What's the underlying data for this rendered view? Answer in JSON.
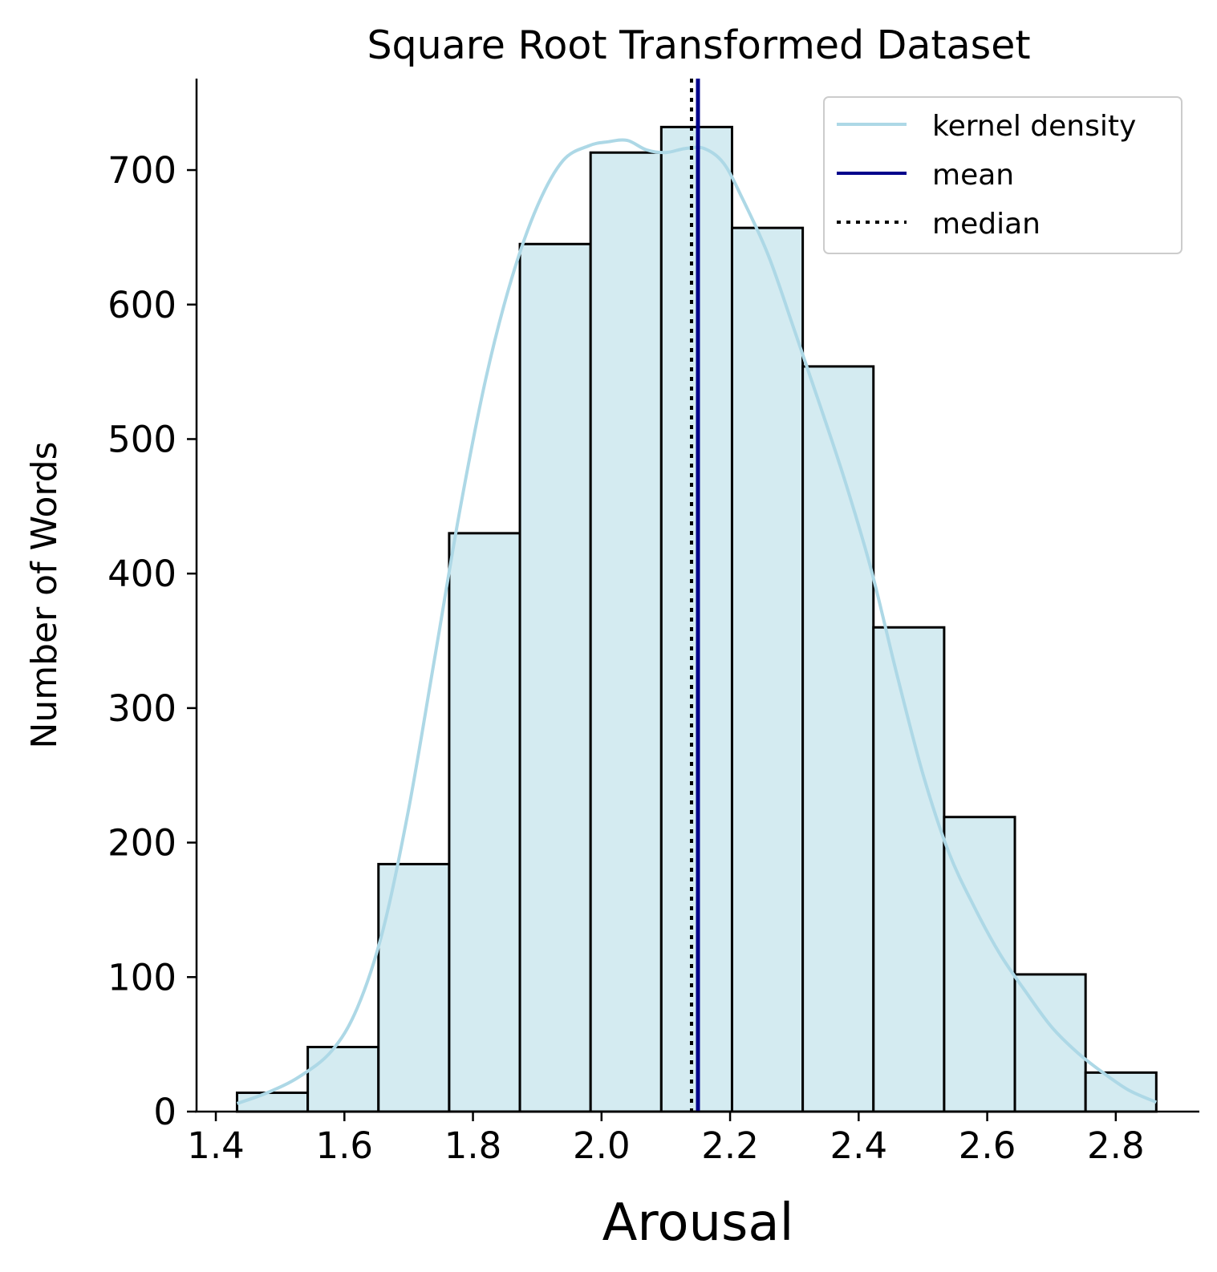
{
  "chart_data": {
    "type": "bar",
    "title": "Square Root Transformed Dataset",
    "xlabel": "Arousal",
    "ylabel": "Number of Words",
    "xlim": [
      1.37,
      2.93
    ],
    "ylim": [
      0,
      768
    ],
    "x_ticks": [
      1.4,
      1.6,
      1.8,
      2.0,
      2.2,
      2.4,
      2.6,
      2.8
    ],
    "x_tick_labels": [
      "1.4",
      "1.6",
      "1.8",
      "2.0",
      "2.2",
      "2.4",
      "2.6",
      "2.8"
    ],
    "y_ticks": [
      0,
      100,
      200,
      300,
      400,
      500,
      600,
      700
    ],
    "y_tick_labels": [
      "0",
      "100",
      "200",
      "300",
      "400",
      "500",
      "600",
      "700"
    ],
    "grid": false,
    "legend_position": "top-right",
    "bins": [
      {
        "x0": 1.433,
        "x1": 1.543,
        "count": 14
      },
      {
        "x0": 1.543,
        "x1": 1.653,
        "count": 48
      },
      {
        "x0": 1.653,
        "x1": 1.763,
        "count": 184
      },
      {
        "x0": 1.763,
        "x1": 1.873,
        "count": 430
      },
      {
        "x0": 1.873,
        "x1": 1.983,
        "count": 645
      },
      {
        "x0": 1.983,
        "x1": 2.093,
        "count": 713
      },
      {
        "x0": 2.093,
        "x1": 2.203,
        "count": 732
      },
      {
        "x0": 2.203,
        "x1": 2.313,
        "count": 657
      },
      {
        "x0": 2.313,
        "x1": 2.423,
        "count": 554
      },
      {
        "x0": 2.423,
        "x1": 2.533,
        "count": 360
      },
      {
        "x0": 2.533,
        "x1": 2.643,
        "count": 219
      },
      {
        "x0": 2.643,
        "x1": 2.753,
        "count": 102
      },
      {
        "x0": 2.753,
        "x1": 2.863,
        "count": 29
      }
    ],
    "kde": {
      "name": "kernel density",
      "x": [
        1.433,
        1.48,
        1.53,
        1.58,
        1.62,
        1.66,
        1.7,
        1.74,
        1.78,
        1.82,
        1.86,
        1.9,
        1.94,
        1.98,
        2.01,
        2.04,
        2.07,
        2.1,
        2.13,
        2.16,
        2.19,
        2.22,
        2.26,
        2.3,
        2.34,
        2.38,
        2.42,
        2.46,
        2.5,
        2.54,
        2.58,
        2.62,
        2.66,
        2.7,
        2.74,
        2.78,
        2.82,
        2.863
      ],
      "y": [
        6,
        14,
        26,
        45,
        77,
        135,
        225,
        336,
        448,
        545,
        619,
        673,
        707,
        718,
        721,
        722,
        715,
        713,
        716,
        716,
        705,
        678,
        636,
        581,
        525,
        467,
        402,
        324,
        251,
        193,
        152,
        117,
        89,
        63,
        44,
        29,
        16,
        7
      ]
    },
    "mean": {
      "name": "mean",
      "value": 2.15
    },
    "median": {
      "name": "median",
      "value": 2.14
    },
    "colors": {
      "bar_fill": "#d4ebf1",
      "bar_edge": "#000000",
      "kde": "#add8e6",
      "mean": "#00008b",
      "median": "#000000"
    }
  }
}
